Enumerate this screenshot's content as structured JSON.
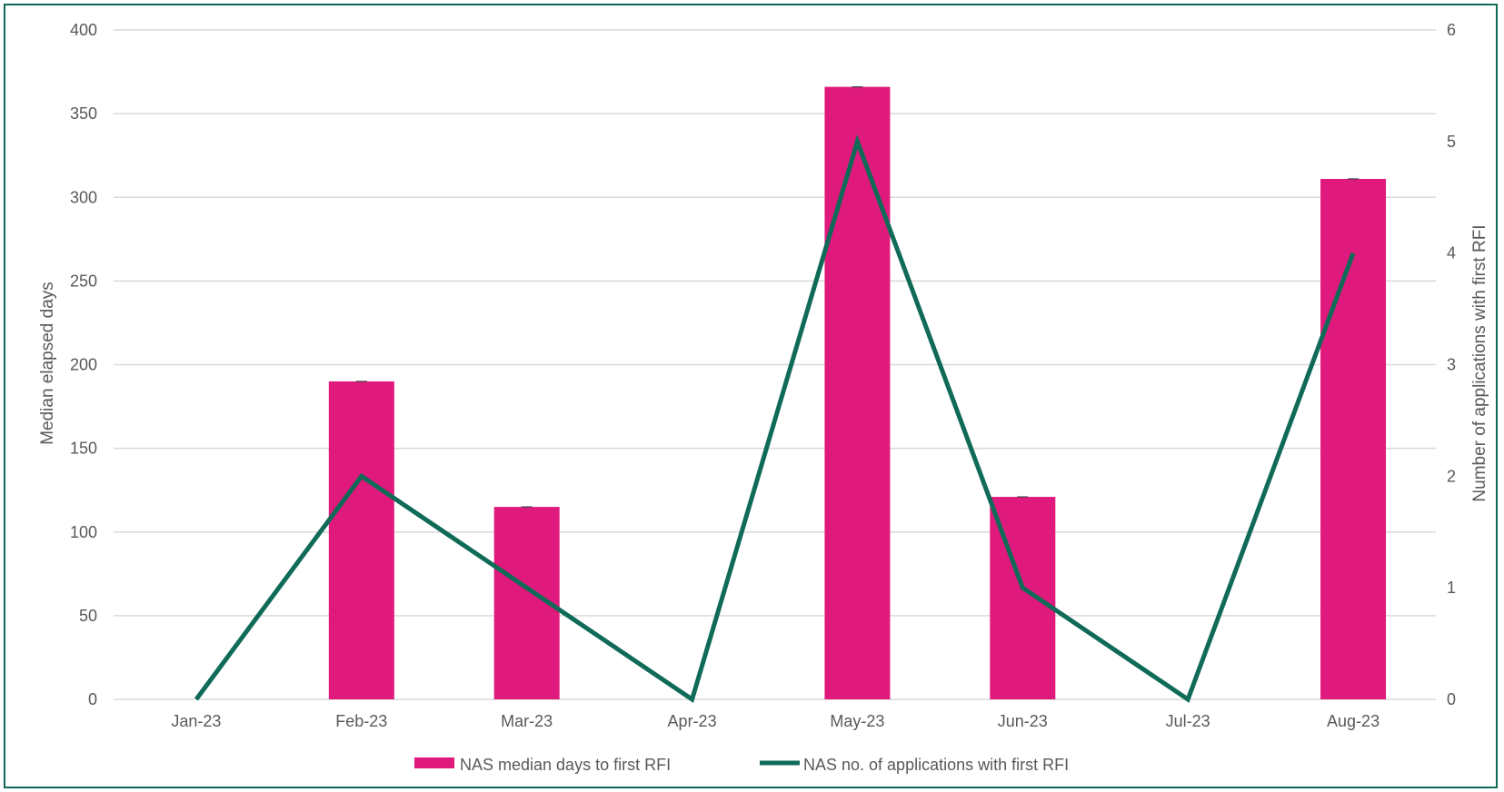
{
  "chart_data": {
    "type": "bar",
    "categories": [
      "Jan-23",
      "Feb-23",
      "Mar-23",
      "Apr-23",
      "May-23",
      "Jun-23",
      "Jul-23",
      "Aug-23"
    ],
    "series": [
      {
        "name": "NAS median days to first RFI",
        "type": "bar",
        "axis": "left",
        "color": "#e0197d",
        "values": [
          null,
          190,
          115,
          null,
          366,
          121,
          null,
          311
        ]
      },
      {
        "name": "NAS no. of applications with first RFI",
        "type": "line",
        "axis": "right",
        "color": "#0f6b57",
        "values": [
          0,
          2,
          1,
          0,
          5,
          1,
          0,
          4
        ]
      }
    ],
    "ylabel": "Median elapsed days",
    "y2label": "Number  of applications with first RFI",
    "ylim": [
      0,
      400
    ],
    "y2lim": [
      0,
      6
    ],
    "yticks": [
      "0",
      "50",
      "100",
      "150",
      "200",
      "250",
      "300",
      "350",
      "400"
    ],
    "y2ticks": [
      "0",
      "1",
      "2",
      "3",
      "4",
      "5",
      "6"
    ],
    "grid": true,
    "legend_position": "bottom"
  }
}
